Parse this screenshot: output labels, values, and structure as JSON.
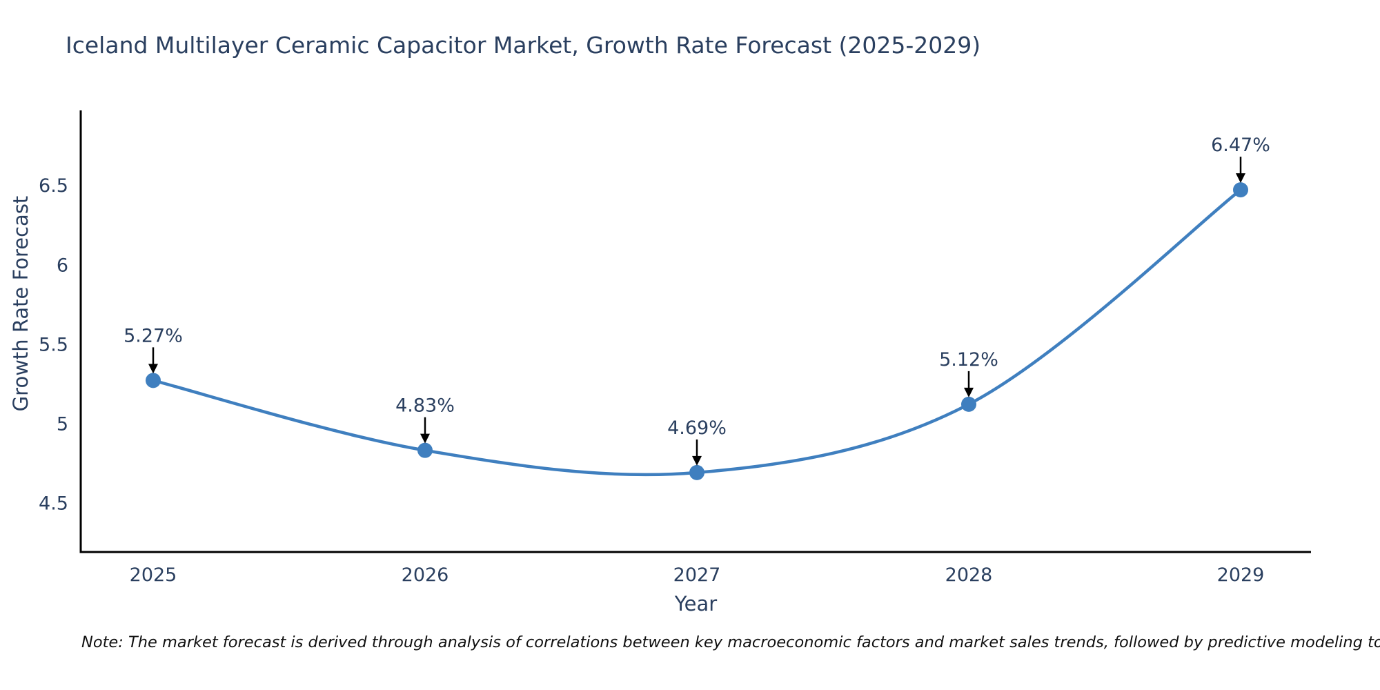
{
  "page": {
    "note": "Note: The market forecast is derived through analysis of correlations between key macroeconomic factors and market sales trends, followed by predictive modeling to project future sales"
  },
  "chart_data": {
    "type": "line",
    "title": "Iceland Multilayer Ceramic Capacitor Market, Growth Rate Forecast (2025-2029)",
    "xlabel": "Year",
    "ylabel": "Growth Rate Forecast",
    "categories": [
      "2025",
      "2026",
      "2027",
      "2028",
      "2029"
    ],
    "series": [
      {
        "name": "Growth Rate Forecast",
        "values": [
          5.27,
          4.83,
          4.69,
          5.12,
          6.47
        ]
      }
    ],
    "point_labels": [
      "5.27%",
      "4.83%",
      "4.69%",
      "5.12%",
      "6.47%"
    ],
    "y_ticks": [
      "4.5",
      "5",
      "5.5",
      "6",
      "6.5"
    ],
    "ylim": [
      4.19,
      6.97
    ],
    "grid": false,
    "legend": "none",
    "colors": {
      "line": "#3f7fbf",
      "marker": "#3f7fbf",
      "axis": "#000000",
      "tick_text": "#2a3f5f",
      "annotation_text": "#2a3f5f",
      "annotation_arrow": "#000000",
      "note_text": "#111111"
    }
  }
}
